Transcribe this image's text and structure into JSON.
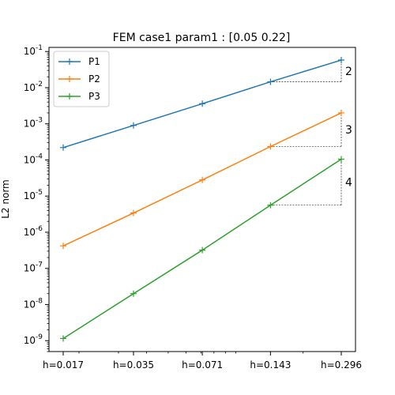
{
  "chart_data": {
    "type": "line",
    "title": "FEM case1 param1 : [0.05 0.22]",
    "xlabel": "",
    "ylabel": "L2 norm",
    "xscale": "log",
    "yscale": "log",
    "x": [
      0.017,
      0.035,
      0.071,
      0.143,
      0.296
    ],
    "xtick_labels": [
      "h=0.017",
      "h=0.035",
      "h=0.071",
      "h=0.143",
      "h=0.296"
    ],
    "ylim": [
      5e-10,
      0.13
    ],
    "ytick_values": [
      1e-09,
      1e-08,
      1e-07,
      1e-06,
      1e-05,
      0.0001,
      0.001,
      0.01,
      0.1
    ],
    "ytick_labels": [
      "10^-9",
      "10^-8",
      "10^-7",
      "10^-6",
      "10^-5",
      "10^-4",
      "10^-3",
      "10^-2",
      "10^-1"
    ],
    "grid": false,
    "legend_position": "top-left",
    "series": [
      {
        "name": "P1",
        "color": "#1f77b4",
        "values": [
          0.00022,
          0.0009,
          0.0036,
          0.0145,
          0.058
        ],
        "slope_label": "2"
      },
      {
        "name": "P2",
        "color": "#ff7f0e",
        "values": [
          4.2e-07,
          3.4e-06,
          2.8e-05,
          0.000235,
          0.002
        ],
        "slope_label": "3"
      },
      {
        "name": "P3",
        "color": "#2ca02c",
        "values": [
          1.15e-09,
          2e-08,
          3.2e-07,
          5.6e-06,
          0.000105
        ],
        "slope_label": "4"
      }
    ]
  }
}
